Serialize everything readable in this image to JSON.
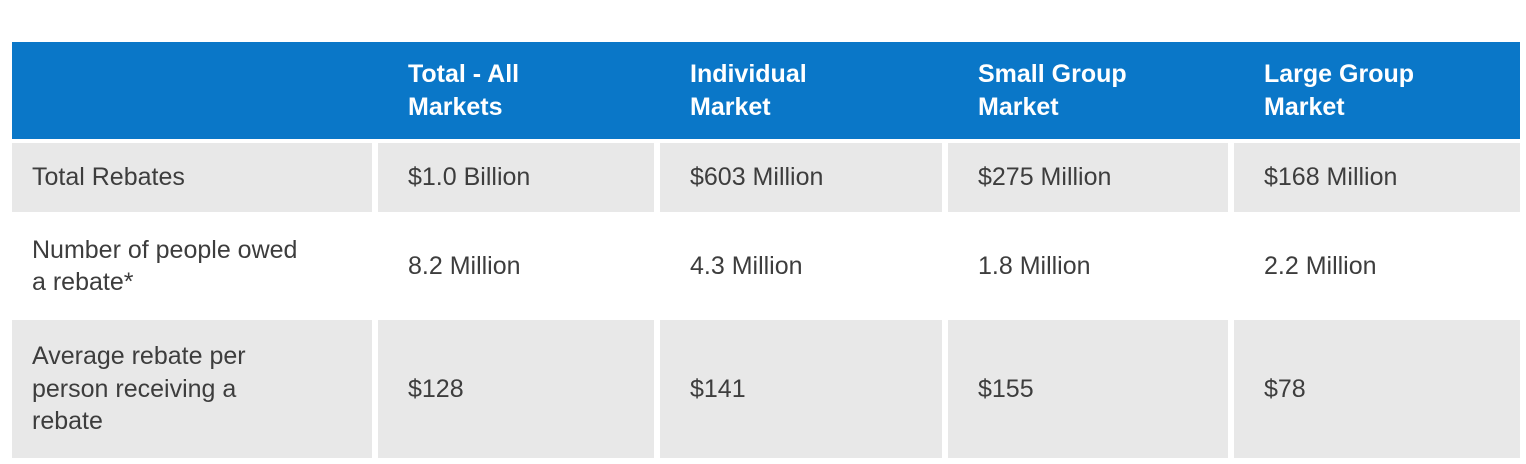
{
  "colors": {
    "header_bg": "#0a77c8",
    "header_text": "#ffffff",
    "stripe_bg": "#e8e8e8",
    "row_bg": "#ffffff",
    "body_text": "#3d3d3d"
  },
  "chart_data": {
    "type": "table",
    "columns": [
      "",
      "Total - All Markets",
      "Individual Market",
      "Small Group Market",
      "Large Group Market"
    ],
    "rows": [
      {
        "label": "Total Rebates",
        "values": [
          "$1.0 Billion",
          "$603 Million",
          "$275 Million",
          "$168 Million"
        ]
      },
      {
        "label": "Number of people owed a rebate*",
        "values": [
          "8.2 Million",
          "4.3 Million",
          "1.8 Million",
          "2.2 Million"
        ]
      },
      {
        "label": "Average rebate per person receiving a rebate",
        "values": [
          "$128",
          "$141",
          "$155",
          "$78"
        ]
      }
    ]
  }
}
